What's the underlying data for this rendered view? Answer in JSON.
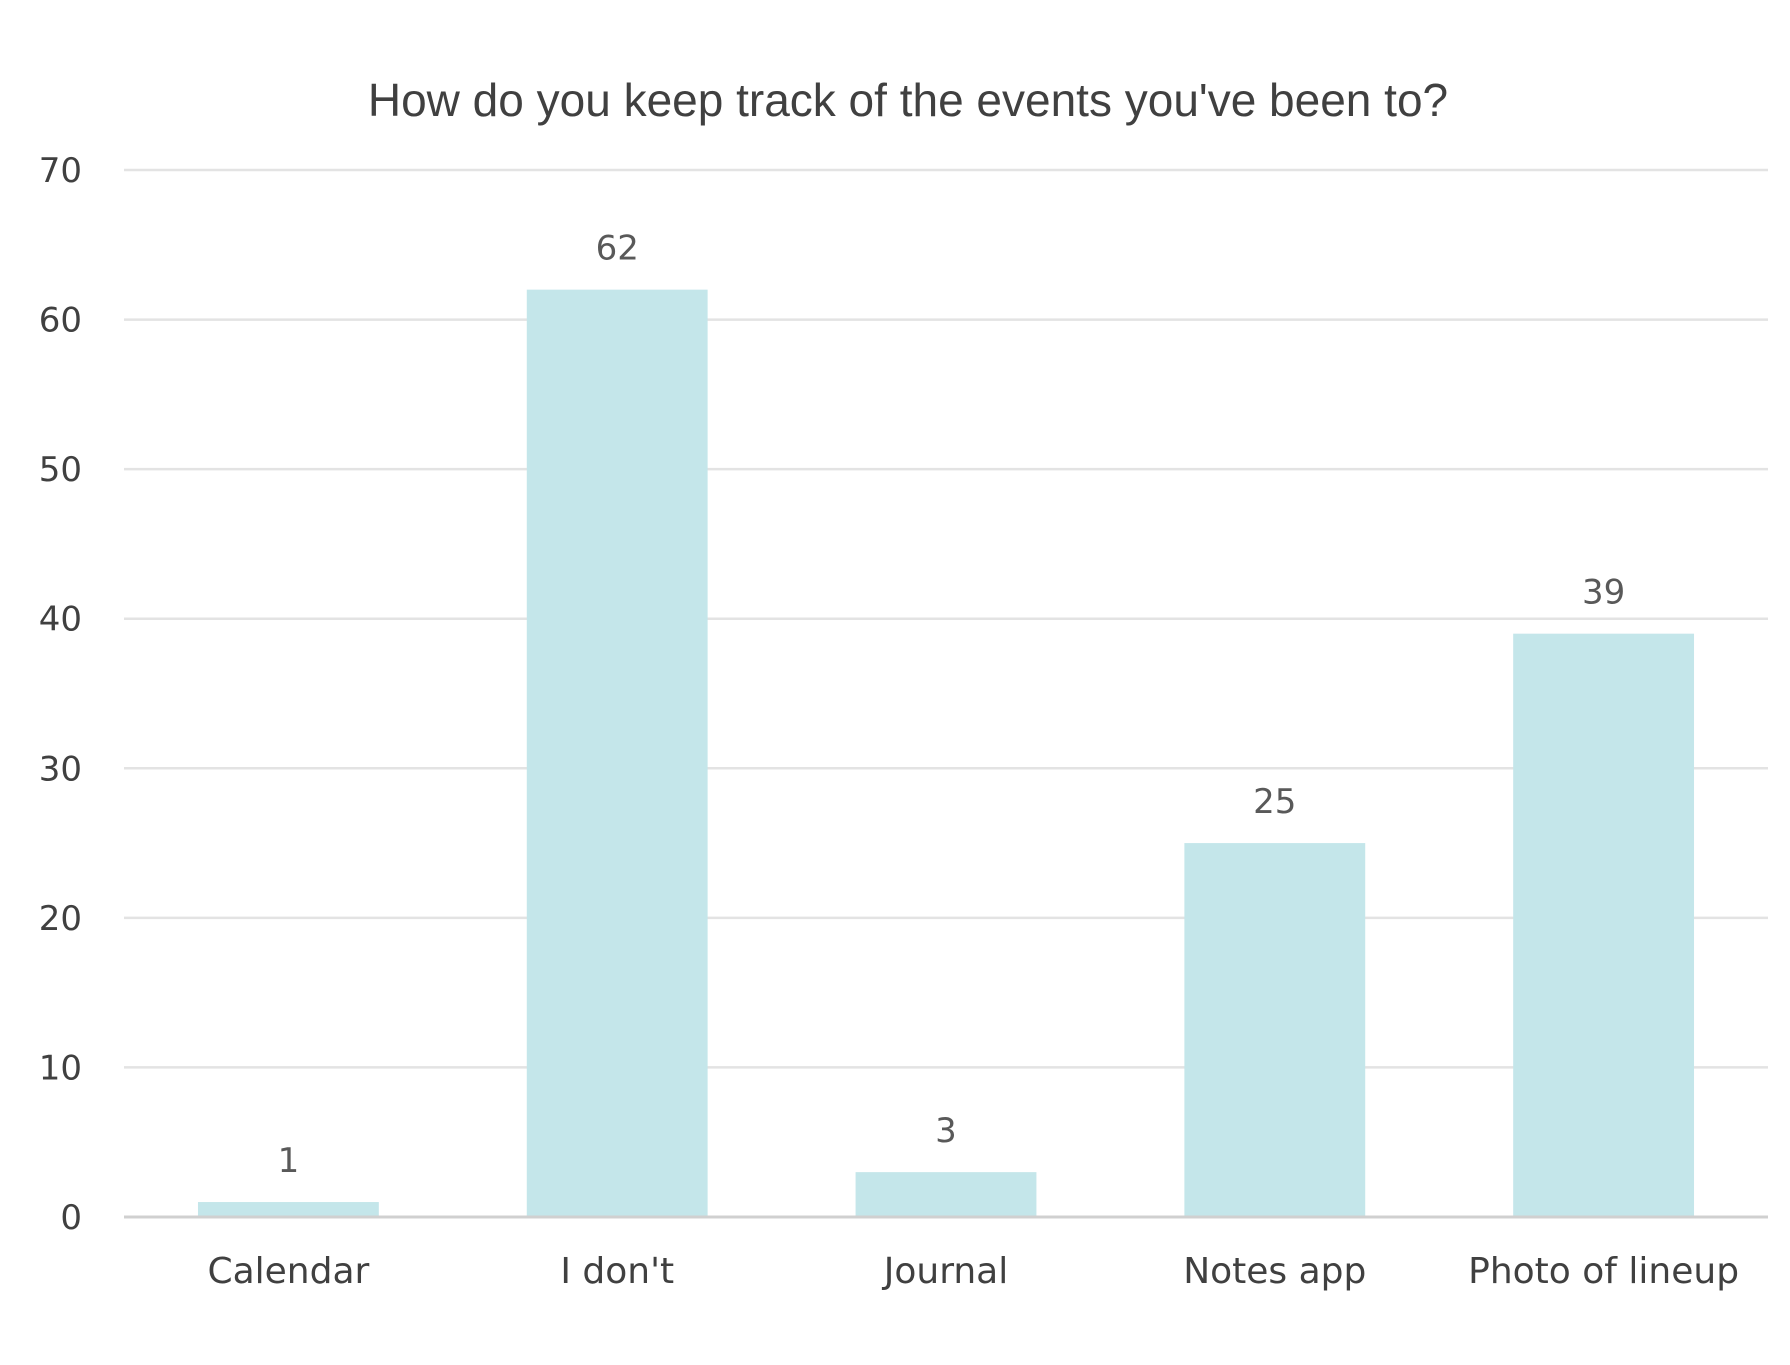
{
  "chart_data": {
    "type": "bar",
    "title": "How do you keep track of the events you've been to?",
    "xlabel": "",
    "ylabel": "",
    "categories": [
      "Calendar",
      "I don't",
      "Journal",
      "Notes app",
      "Photo of lineup"
    ],
    "values": [
      1,
      62,
      3,
      25,
      39
    ],
    "data_labels": [
      "1",
      "62",
      "3",
      "25",
      "39"
    ],
    "ylim": [
      0,
      70
    ],
    "yticks": [
      0,
      10,
      20,
      30,
      40,
      50,
      60,
      70
    ],
    "ytick_labels": [
      "0",
      "10",
      "20",
      "30",
      "40",
      "50",
      "60",
      "70"
    ],
    "grid": true,
    "legend": "none",
    "bar_color": "#c4e6ea",
    "gridline_color": "#e3e3e3",
    "axis_color": "#d0d0d0",
    "text_color": "#404040"
  }
}
